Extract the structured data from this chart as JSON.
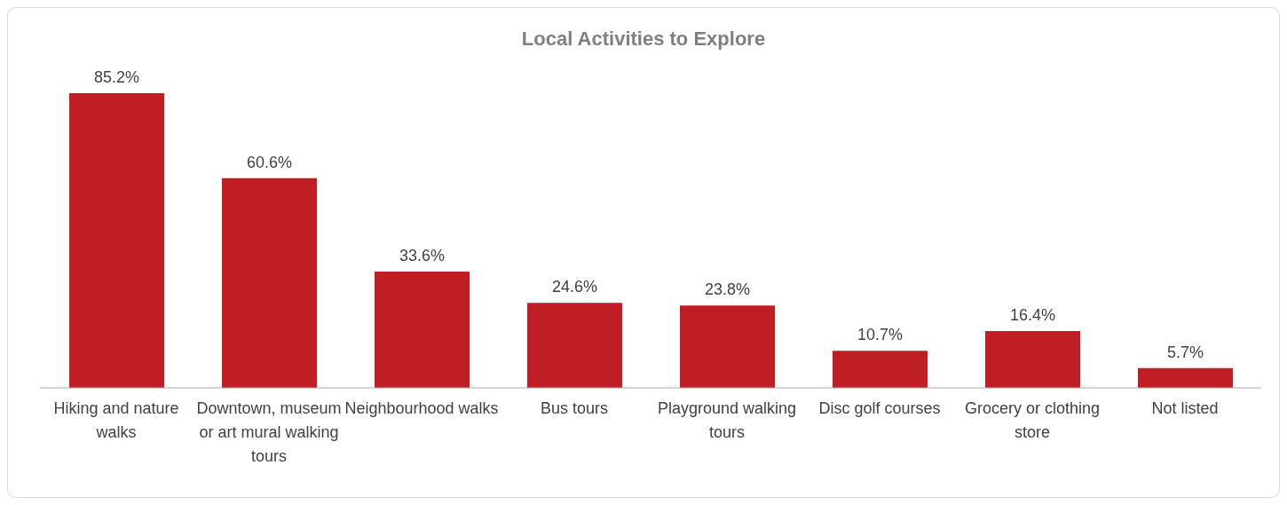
{
  "chart_data": {
    "type": "bar",
    "title": "Local Activities to Explore",
    "categories": [
      "Hiking and nature walks",
      "Downtown, museum or art mural walking tours",
      "Neighbourhood walks",
      "Bus tours",
      "Playground walking tours",
      "Disc golf courses",
      "Grocery or clothing store",
      "Not listed"
    ],
    "values": [
      85.2,
      60.6,
      33.6,
      24.6,
      23.8,
      10.7,
      16.4,
      5.7
    ],
    "value_labels": [
      "85.2%",
      "60.6%",
      "33.6%",
      "24.6%",
      "23.8%",
      "10.7%",
      "16.4%",
      "5.7%"
    ],
    "color": "#be1e24",
    "grid": false,
    "legend": false
  }
}
